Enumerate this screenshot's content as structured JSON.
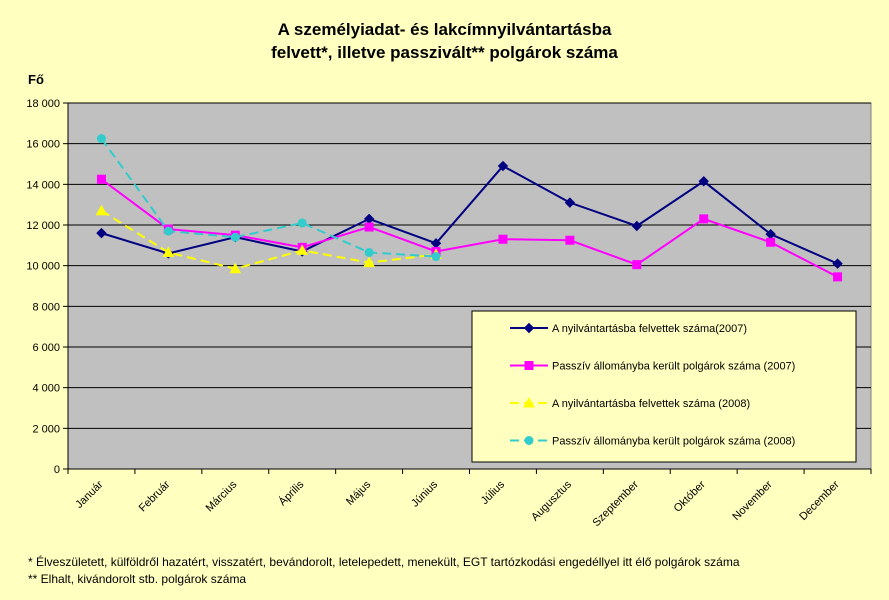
{
  "chart_data": {
    "type": "line",
    "title_line1": "A személyiadat- és lakcímnyilvántartásba",
    "title_line2": "felvett*, illetve passzivált** polgárok száma",
    "ylabel": "Fő",
    "xlabel": "",
    "ylim": [
      0,
      18000
    ],
    "ytick_labels": [
      "0",
      "2 000",
      "4 000",
      "6 000",
      "8 000",
      "10 000",
      "12 000",
      "14 000",
      "16 000",
      "18 000"
    ],
    "categories": [
      "Január",
      "Február",
      "Március",
      "Április",
      "Május",
      "Június",
      "Július",
      "Augusztus",
      "Szeptember",
      "Október",
      "November",
      "December"
    ],
    "grid": true,
    "legend_position": "bottom-right inside plot",
    "series": [
      {
        "name": "A nyilvántartásba felvettek száma(2007)",
        "color": "#000080",
        "marker": "diamond",
        "dash": "solid",
        "values": [
          11600,
          10600,
          11400,
          10700,
          12300,
          11100,
          14900,
          13100,
          11950,
          14150,
          11550,
          10100
        ]
      },
      {
        "name": "Passzív állományba került polgárok száma (2007)",
        "color": "#FF00FF",
        "marker": "square",
        "dash": "solid",
        "values": [
          14250,
          11800,
          11500,
          10900,
          11900,
          10700,
          11300,
          11250,
          10050,
          12300,
          11150,
          9450
        ]
      },
      {
        "name": "A nyilvántartásba felvettek száma (2008)",
        "color": "#FFFF00",
        "marker": "triangle",
        "dash": "dashed",
        "values": [
          12700,
          10650,
          9850,
          10750,
          10150,
          10550,
          null,
          null,
          null,
          null,
          null,
          null
        ]
      },
      {
        "name": "Passzív állományba került polgárok száma (2008)",
        "color": "#33CCCC",
        "marker": "circle",
        "dash": "dashed",
        "values": [
          16250,
          11700,
          11400,
          12100,
          10650,
          10450,
          null,
          null,
          null,
          null,
          null,
          null
        ]
      }
    ]
  },
  "footnotes": {
    "line1": "* Élveszületett, külföldről hazatért, visszatért, bevándorolt, letelepedett, menekült, EGT tartózkodási engedéllyel itt élő  polgárok száma",
    "line2": "** Elhalt, kivándorolt stb. polgárok száma"
  },
  "colors": {
    "background": "#FFFFC0",
    "plot_area": "#C0C0C0",
    "legend_box": "#FFFFC0"
  }
}
